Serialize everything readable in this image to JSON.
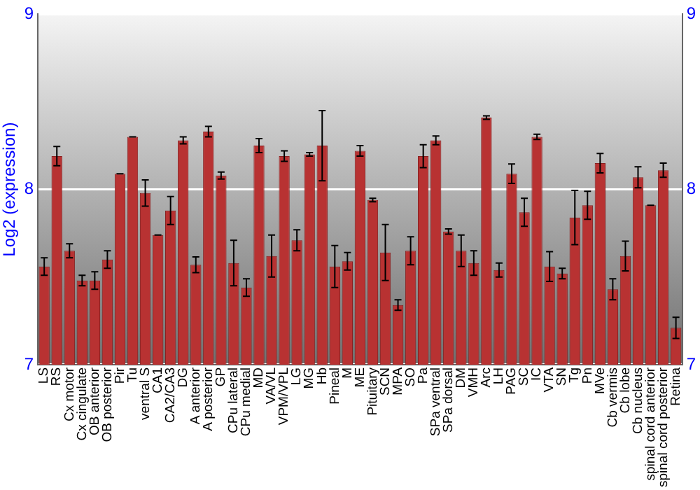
{
  "chart_data": {
    "type": "bar",
    "ylabel": "Log2 (expression)",
    "categories": [
      "LS",
      "RS",
      "Cx motor",
      "Cx cingulate",
      "OB anterior",
      "OB posterior",
      "Pir",
      "Tu",
      "ventral S",
      "CA1",
      "CA2/CA3",
      "DG",
      "A anterior",
      "A posterior",
      "GP",
      "CPu lateral",
      "CPu medial",
      "MD",
      "VA/VL",
      "VPM/VPL",
      "LG",
      "MG",
      "Hb",
      "Pineal",
      "M",
      "ME",
      "Pituitary",
      "SCN",
      "MPA",
      "SO",
      "Pa",
      "SPa ventral",
      "SPa dorsal",
      "DM",
      "VMH",
      "Arc",
      "LH",
      "PAG",
      "SC",
      "IC",
      "VTA",
      "SN",
      "Tg",
      "Pn",
      "MVe",
      "Cb vermis",
      "Cb lobe",
      "Cb nucleus",
      "spinal cord anterior",
      "spinal cord posterior",
      "Retina"
    ],
    "values": [
      7.56,
      8.19,
      7.65,
      7.48,
      7.48,
      7.6,
      8.09,
      8.3,
      7.98,
      7.74,
      7.88,
      8.28,
      7.57,
      8.33,
      8.08,
      7.58,
      7.44,
      8.25,
      7.62,
      8.19,
      7.71,
      8.2,
      8.25,
      7.56,
      7.59,
      8.22,
      7.94,
      7.64,
      7.34,
      7.65,
      8.19,
      8.28,
      7.76,
      7.65,
      7.58,
      8.41,
      7.54,
      8.09,
      7.87,
      8.3,
      7.56,
      7.52,
      7.84,
      7.91,
      8.15,
      7.43,
      7.62,
      8.07,
      7.91,
      8.11,
      7.21
    ],
    "errors": [
      0.05,
      0.055,
      0.04,
      0.03,
      0.05,
      0.05,
      0,
      0,
      0.075,
      0,
      0.08,
      0.02,
      0.045,
      0.03,
      0.02,
      0.13,
      0.05,
      0.04,
      0.12,
      0.03,
      0.06,
      0.01,
      0.2,
      0.12,
      0.05,
      0.03,
      0.01,
      0.16,
      0.03,
      0.08,
      0.065,
      0.025,
      0.015,
      0.09,
      0.07,
      0.01,
      0.04,
      0.055,
      0.08,
      0.015,
      0.085,
      0.03,
      0.155,
      0.08,
      0.055,
      0.06,
      0.085,
      0.06,
      0,
      0.04,
      0.06
    ],
    "color": "#b83232",
    "ylim": [
      7,
      9
    ],
    "yticks": [
      7,
      8,
      9
    ],
    "y2lim": [
      7,
      9
    ],
    "y2ticks": [
      7,
      8,
      9
    ],
    "grid": "y",
    "legend": false
  }
}
